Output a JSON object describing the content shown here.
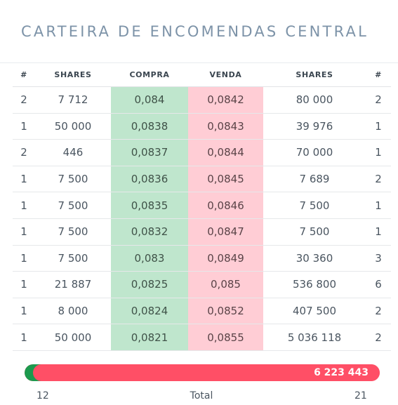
{
  "title": "CARTEIRA DE ENCOMENDAS CENTRAL",
  "colors": {
    "buy_cell": "#bfe6cd",
    "sell_cell": "#ffcdd5",
    "buy_bar": "#1c9a4e",
    "sell_bar": "#ff4f66",
    "title": "#7d93a8"
  },
  "headers": {
    "buy_count": "#",
    "buy_shares": "SHARES",
    "buy_price": "COMPRA",
    "sell_price": "VENDA",
    "sell_shares": "SHARES",
    "sell_count": "#"
  },
  "rows": [
    {
      "buy_count": "2",
      "buy_shares": "7 712",
      "buy_price": "0,084",
      "sell_price": "0,0842",
      "sell_shares": "80 000",
      "sell_count": "2"
    },
    {
      "buy_count": "1",
      "buy_shares": "50 000",
      "buy_price": "0,0838",
      "sell_price": "0,0843",
      "sell_shares": "39 976",
      "sell_count": "1"
    },
    {
      "buy_count": "2",
      "buy_shares": "446",
      "buy_price": "0,0837",
      "sell_price": "0,0844",
      "sell_shares": "70 000",
      "sell_count": "1"
    },
    {
      "buy_count": "1",
      "buy_shares": "7 500",
      "buy_price": "0,0836",
      "sell_price": "0,0845",
      "sell_shares": "7 689",
      "sell_count": "2"
    },
    {
      "buy_count": "1",
      "buy_shares": "7 500",
      "buy_price": "0,0835",
      "sell_price": "0,0846",
      "sell_shares": "7 500",
      "sell_count": "1"
    },
    {
      "buy_count": "1",
      "buy_shares": "7 500",
      "buy_price": "0,0832",
      "sell_price": "0,0847",
      "sell_shares": "7 500",
      "sell_count": "1"
    },
    {
      "buy_count": "1",
      "buy_shares": "7 500",
      "buy_price": "0,083",
      "sell_price": "0,0849",
      "sell_shares": "30 360",
      "sell_count": "3"
    },
    {
      "buy_count": "1",
      "buy_shares": "21 887",
      "buy_price": "0,0825",
      "sell_price": "0,085",
      "sell_shares": "536 800",
      "sell_count": "6"
    },
    {
      "buy_count": "1",
      "buy_shares": "8 000",
      "buy_price": "0,0824",
      "sell_price": "0,0852",
      "sell_shares": "407 500",
      "sell_count": "2"
    },
    {
      "buy_count": "1",
      "buy_shares": "50 000",
      "buy_price": "0,0821",
      "sell_price": "0,0855",
      "sell_shares": "5 036 118",
      "sell_count": "2"
    }
  ],
  "totals_bar": {
    "buy_fraction": 0.03,
    "sell_total_label": "6 223 443"
  },
  "footer": {
    "buy_orders": "12",
    "label": "Total",
    "sell_orders": "21"
  }
}
